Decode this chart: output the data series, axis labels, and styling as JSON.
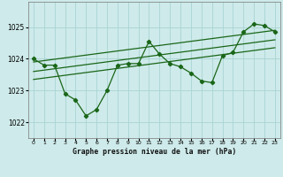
{
  "title": "Graphe pression niveau de la mer (hPa)",
  "background_color": "#ceeaea",
  "grid_color": "#aad4d4",
  "line_color": "#1a6618",
  "x_ticks": [
    0,
    1,
    2,
    3,
    4,
    5,
    6,
    7,
    8,
    9,
    10,
    11,
    12,
    13,
    14,
    15,
    16,
    17,
    18,
    19,
    20,
    21,
    22,
    23
  ],
  "y_ticks": [
    1022,
    1023,
    1024,
    1025
  ],
  "ylim": [
    1021.5,
    1025.8
  ],
  "xlim": [
    -0.5,
    23.5
  ],
  "pressure_data": [
    [
      0,
      1024.0
    ],
    [
      1,
      1023.8
    ],
    [
      2,
      1023.8
    ],
    [
      3,
      1022.9
    ],
    [
      4,
      1022.7
    ],
    [
      5,
      1022.2
    ],
    [
      6,
      1022.4
    ],
    [
      7,
      1023.0
    ],
    [
      8,
      1023.8
    ],
    [
      9,
      1023.85
    ],
    [
      10,
      1023.85
    ],
    [
      11,
      1024.55
    ],
    [
      12,
      1024.15
    ],
    [
      13,
      1023.85
    ],
    [
      14,
      1023.75
    ],
    [
      15,
      1023.55
    ],
    [
      16,
      1023.3
    ],
    [
      17,
      1023.25
    ],
    [
      18,
      1024.1
    ],
    [
      19,
      1024.2
    ],
    [
      20,
      1024.85
    ],
    [
      21,
      1025.1
    ],
    [
      22,
      1025.05
    ],
    [
      23,
      1024.85
    ]
  ],
  "trend_line1": [
    [
      0,
      1023.9
    ],
    [
      23,
      1024.9
    ]
  ],
  "trend_line2": [
    [
      0,
      1023.6
    ],
    [
      23,
      1024.6
    ]
  ],
  "trend_line3": [
    [
      0,
      1023.35
    ],
    [
      23,
      1024.35
    ]
  ]
}
